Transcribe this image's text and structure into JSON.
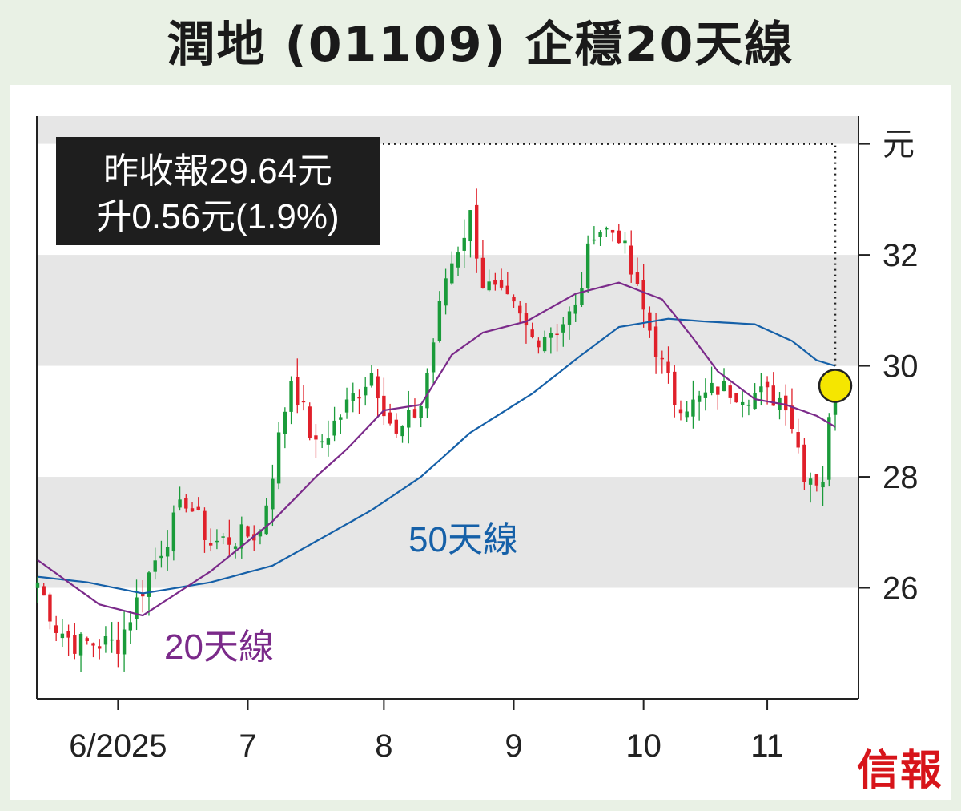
{
  "title": "潤地 (01109) 企穩20天線",
  "info_box": {
    "line1": "昨收報29.64元",
    "line2": "升0.56元(1.9%)"
  },
  "logo": "信報",
  "colors": {
    "up": "#1a9b3a",
    "down": "#e0202a",
    "ma20": "#7b2a8a",
    "ma50": "#1560a8",
    "band": "#e6e6e6",
    "highlight": "#f5e600"
  },
  "chart_data": {
    "type": "candlestick",
    "y_unit": "元",
    "y_ticks": [
      "32",
      "30",
      "28",
      "26"
    ],
    "x_ticks": [
      "6/2025",
      "7",
      "8",
      "9",
      "10",
      "11"
    ],
    "ylim": [
      24.0,
      34.5
    ],
    "series_labels": {
      "ma20": "20天線",
      "ma50": "50天線"
    },
    "last_close": 29.64,
    "keyframes": [
      {
        "t": 0,
        "c": 26.1
      },
      {
        "t": 3,
        "c": 25.3
      },
      {
        "t": 6,
        "c": 25.0
      },
      {
        "t": 13,
        "c": 25.0
      },
      {
        "t": 19,
        "c": 26.5
      },
      {
        "t": 24,
        "c": 27.6
      },
      {
        "t": 28,
        "c": 26.8
      },
      {
        "t": 36,
        "c": 27.0
      },
      {
        "t": 41,
        "c": 29.8
      },
      {
        "t": 45,
        "c": 28.5
      },
      {
        "t": 54,
        "c": 29.9
      },
      {
        "t": 58,
        "c": 28.7
      },
      {
        "t": 62,
        "c": 29.3
      },
      {
        "t": 66,
        "c": 31.6
      },
      {
        "t": 70,
        "c": 32.7
      },
      {
        "t": 72,
        "c": 31.5
      },
      {
        "t": 77,
        "c": 31.0
      },
      {
        "t": 80,
        "c": 30.5
      },
      {
        "t": 84,
        "c": 30.7
      },
      {
        "t": 87,
        "c": 31.0
      },
      {
        "t": 90,
        "c": 32.5
      },
      {
        "t": 94,
        "c": 32.4
      },
      {
        "t": 97,
        "c": 31.3
      },
      {
        "t": 101,
        "c": 30.0
      },
      {
        "t": 103,
        "c": 29.4
      },
      {
        "t": 106,
        "c": 29.3
      },
      {
        "t": 110,
        "c": 29.6
      },
      {
        "t": 116,
        "c": 29.5
      },
      {
        "t": 121,
        "c": 29.4
      },
      {
        "t": 124,
        "c": 28.1
      },
      {
        "t": 127,
        "c": 27.9
      },
      {
        "t": 128,
        "c": 29.08
      },
      {
        "t": 129,
        "c": 29.64
      }
    ],
    "ma20_kf": [
      {
        "t": 0,
        "v": 26.5
      },
      {
        "t": 5,
        "v": 26.1
      },
      {
        "t": 10,
        "v": 25.7
      },
      {
        "t": 17,
        "v": 25.5
      },
      {
        "t": 28,
        "v": 26.3
      },
      {
        "t": 38,
        "v": 27.2
      },
      {
        "t": 45,
        "v": 28.0
      },
      {
        "t": 50,
        "v": 28.5
      },
      {
        "t": 56,
        "v": 29.2
      },
      {
        "t": 62,
        "v": 29.3
      },
      {
        "t": 67,
        "v": 30.2
      },
      {
        "t": 72,
        "v": 30.6
      },
      {
        "t": 79,
        "v": 30.8
      },
      {
        "t": 87,
        "v": 31.3
      },
      {
        "t": 94,
        "v": 31.5
      },
      {
        "t": 101,
        "v": 31.2
      },
      {
        "t": 106,
        "v": 30.5
      },
      {
        "t": 110,
        "v": 29.9
      },
      {
        "t": 116,
        "v": 29.4
      },
      {
        "t": 121,
        "v": 29.3
      },
      {
        "t": 126,
        "v": 29.1
      },
      {
        "t": 129,
        "v": 28.9
      }
    ],
    "ma50_kf": [
      {
        "t": 0,
        "v": 26.2
      },
      {
        "t": 8,
        "v": 26.1
      },
      {
        "t": 17,
        "v": 25.9
      },
      {
        "t": 28,
        "v": 26.1
      },
      {
        "t": 38,
        "v": 26.4
      },
      {
        "t": 46,
        "v": 26.9
      },
      {
        "t": 54,
        "v": 27.4
      },
      {
        "t": 62,
        "v": 28.0
      },
      {
        "t": 70,
        "v": 28.8
      },
      {
        "t": 80,
        "v": 29.5
      },
      {
        "t": 88,
        "v": 30.2
      },
      {
        "t": 94,
        "v": 30.7
      },
      {
        "t": 102,
        "v": 30.85
      },
      {
        "t": 108,
        "v": 30.8
      },
      {
        "t": 116,
        "v": 30.75
      },
      {
        "t": 122,
        "v": 30.45
      },
      {
        "t": 126,
        "v": 30.1
      },
      {
        "t": 129,
        "v": 30.0
      }
    ],
    "x_tick_t": [
      13,
      34,
      56,
      77,
      98,
      118
    ]
  }
}
